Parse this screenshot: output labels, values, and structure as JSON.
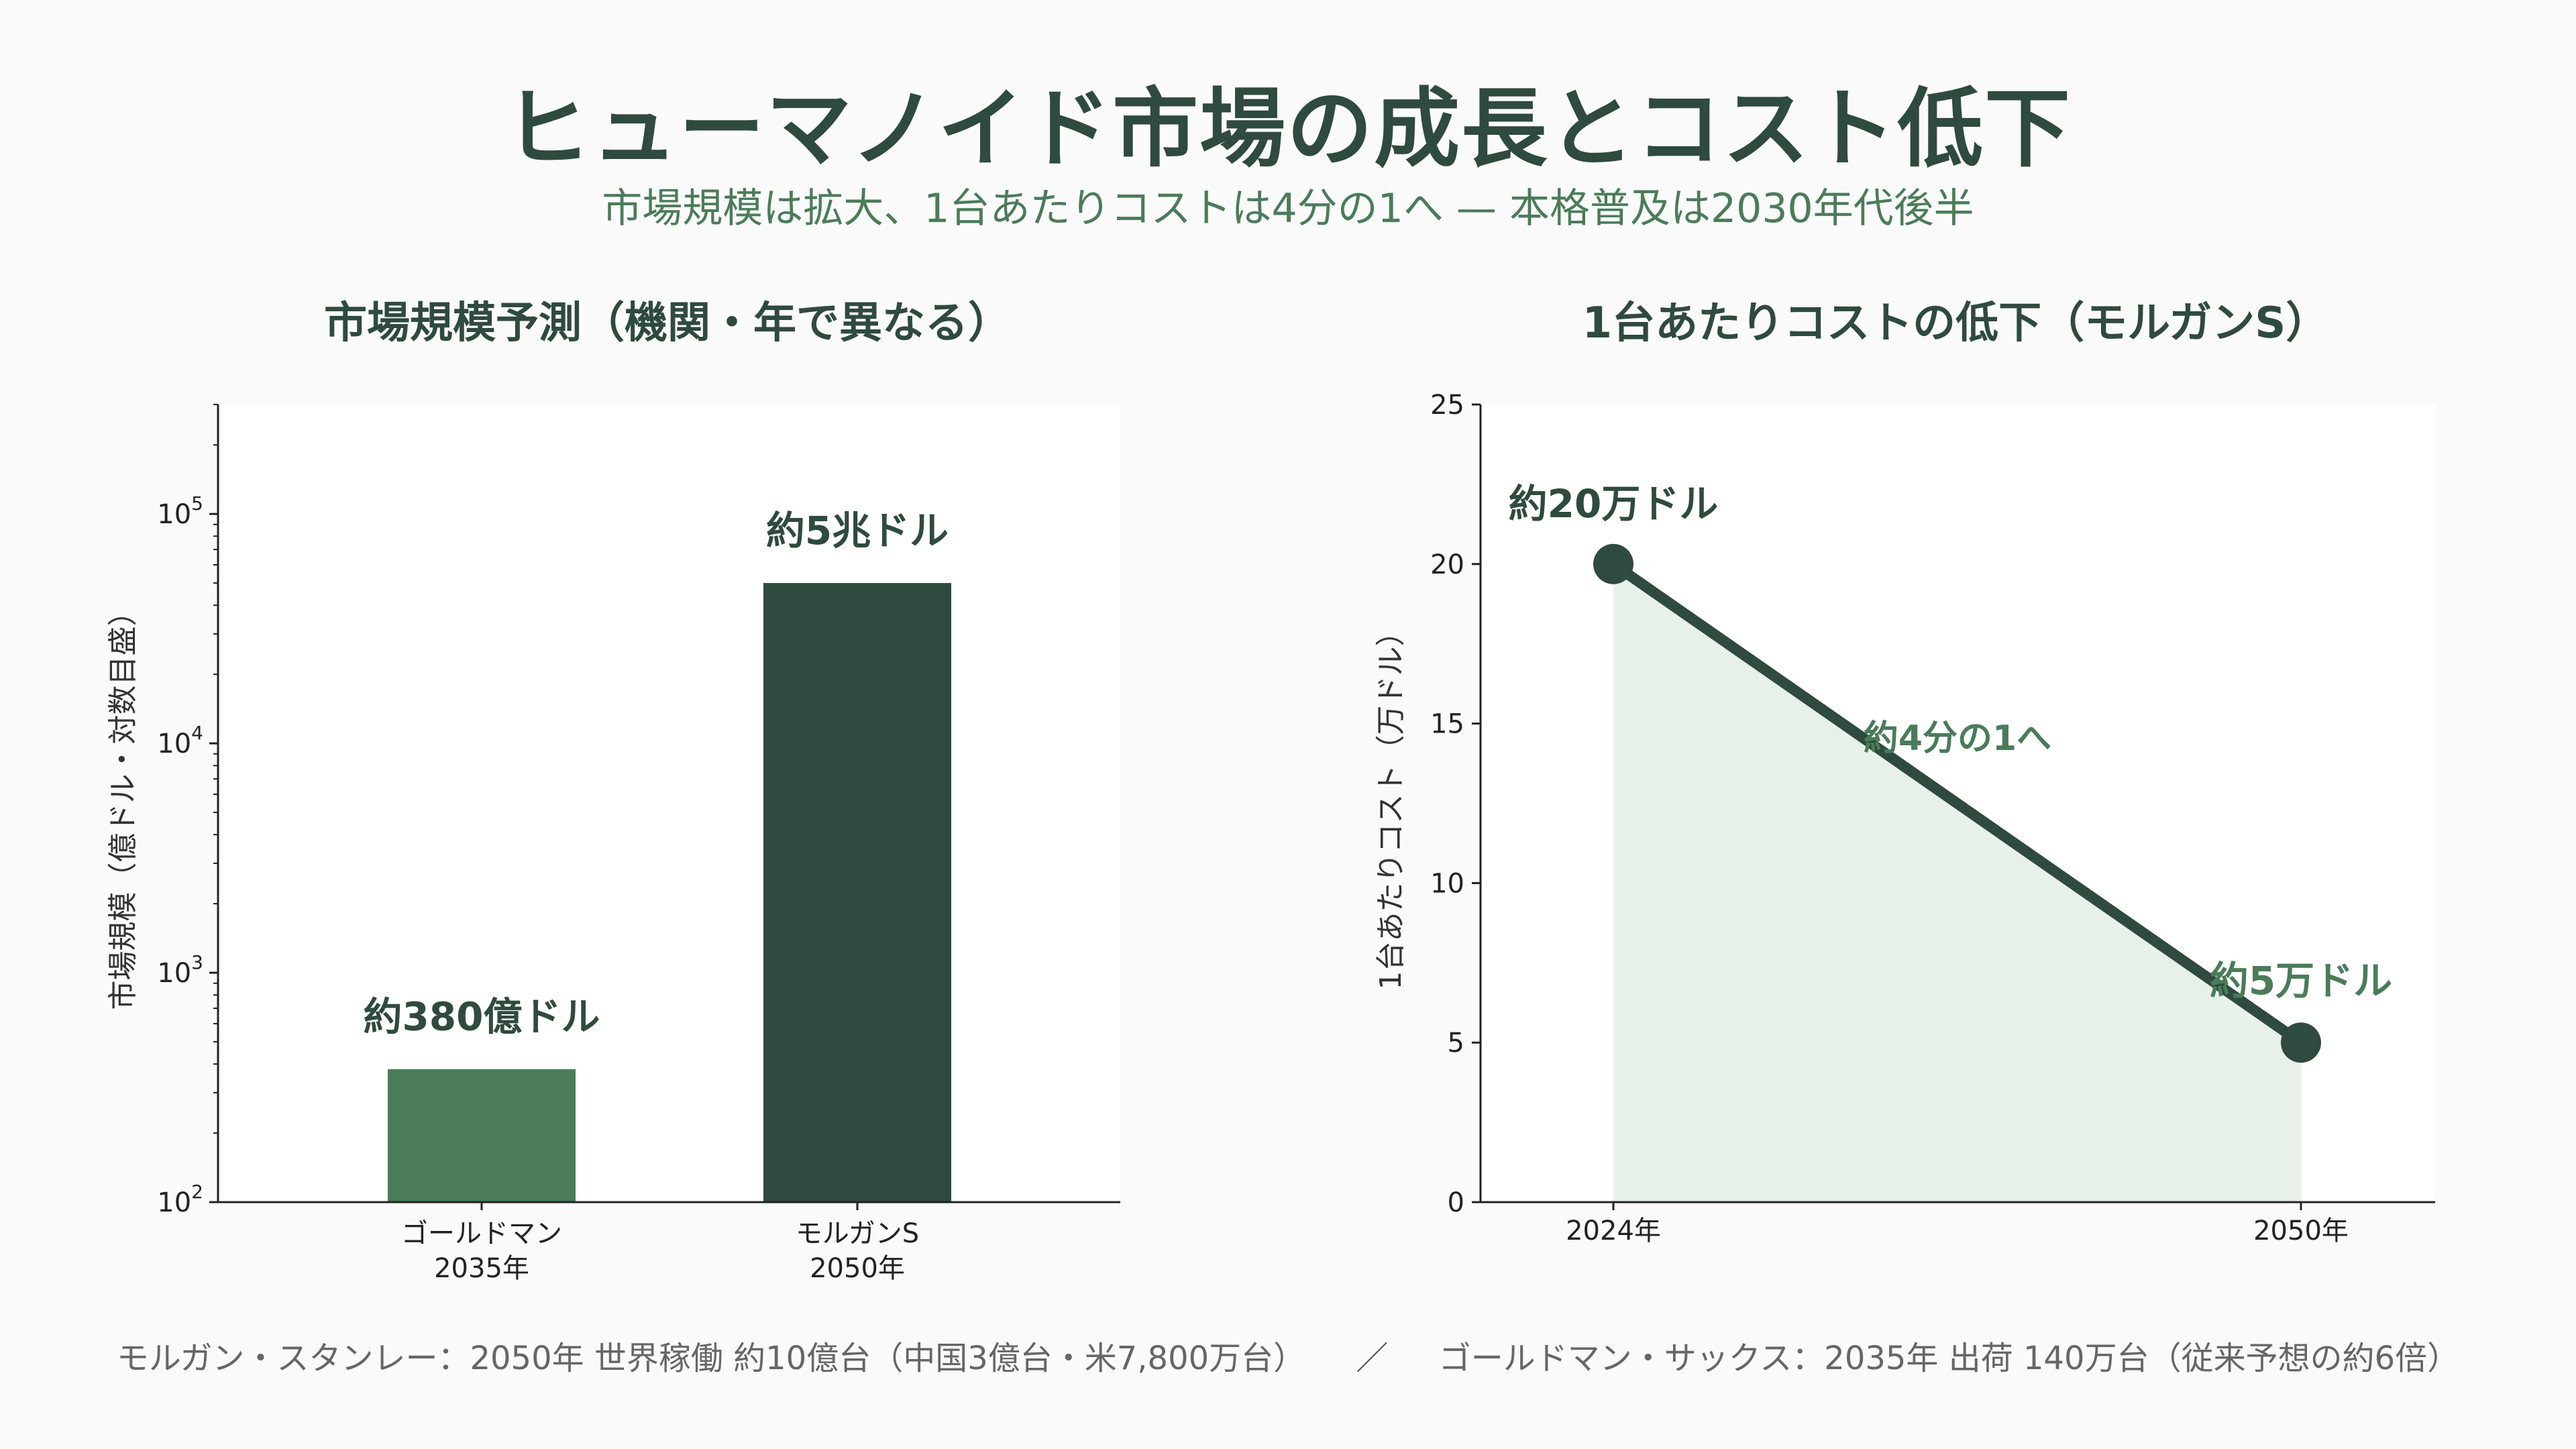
{
  "title": "ヒューマノイド市場の成長とコスト低下",
  "subtitle": "市場規模は拡大、1台あたりコストは4分の1へ — 本格普及は2030年代後半",
  "footer": {
    "left": "モルガン・スタンレー：2050年 世界稼働 約10億台（中国3億台・米7,800万台）",
    "separator": "／",
    "right": "ゴールドマン・サックス：2035年 出荷 140万台（従来予想の約6倍）"
  },
  "colors": {
    "dark_green": "#2f4a3e",
    "mid_green": "#4a7c59",
    "fill_green": "#e8f0ea"
  },
  "chart_data": [
    {
      "type": "bar",
      "title": "市場規模予測（機関・年で異なる）",
      "ylabel": "市場規模（億ドル・対数目盛）",
      "yscale": "log",
      "ylim": [
        100,
        300000
      ],
      "yticks": [
        {
          "value": 100,
          "base": "10",
          "exp": "2"
        },
        {
          "value": 1000,
          "base": "10",
          "exp": "3"
        },
        {
          "value": 10000,
          "base": "10",
          "exp": "4"
        },
        {
          "value": 100000,
          "base": "10",
          "exp": "5"
        }
      ],
      "categories": [
        {
          "line1": "ゴールドマン",
          "line2": "2035年"
        },
        {
          "line1": "モルガンS",
          "line2": "2050年"
        }
      ],
      "values": [
        380,
        50000
      ],
      "data_labels": [
        "約380億ドル",
        "約5兆ドル"
      ],
      "bar_colors": [
        "#4a7c59",
        "#2f4a3e"
      ],
      "grid": false
    },
    {
      "type": "line",
      "title": "1台あたりコストの低下（モルガンS）",
      "ylabel": "1台あたりコスト（万ドル）",
      "ylim": [
        0,
        25
      ],
      "yticks": [
        0,
        5,
        10,
        15,
        20,
        25
      ],
      "x": [
        "2024年",
        "2050年"
      ],
      "values": [
        20,
        5
      ],
      "data_labels": [
        "約20万ドル",
        "約5万ドル"
      ],
      "annotation": "約4分の1へ",
      "grid": false,
      "area_fill": true
    }
  ]
}
